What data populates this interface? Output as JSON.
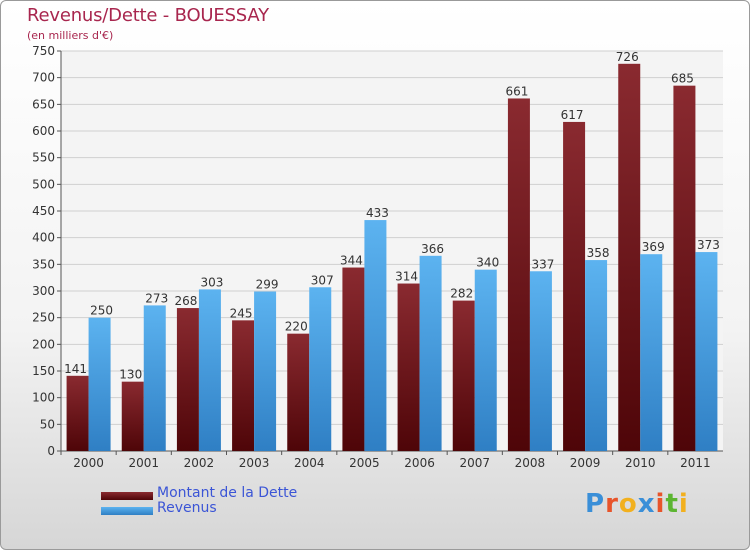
{
  "title": "Revenus/Dette - BOUESSAY",
  "subtitle": "(en milliers d'€)",
  "chart_data": {
    "type": "bar",
    "categories": [
      "2000",
      "2001",
      "2002",
      "2003",
      "2004",
      "2005",
      "2006",
      "2007",
      "2008",
      "2009",
      "2010",
      "2011"
    ],
    "series": [
      {
        "name": "Montant de la Dette",
        "values": [
          141,
          130,
          268,
          245,
          220,
          344,
          314,
          282,
          661,
          617,
          726,
          685
        ],
        "color": "#6b0f14"
      },
      {
        "name": "Revenus",
        "values": [
          250,
          273,
          303,
          299,
          307,
          433,
          366,
          340,
          337,
          358,
          369,
          373
        ],
        "color": "#4aa3e6"
      }
    ],
    "ylim": [
      0,
      750
    ],
    "yticks": [
      0,
      50,
      100,
      150,
      200,
      250,
      300,
      350,
      400,
      450,
      500,
      550,
      600,
      650,
      700,
      750
    ],
    "grid": true,
    "legend": "bottom-left"
  },
  "logo": {
    "letters": [
      "P",
      "r",
      "o",
      "x",
      "i",
      "t",
      "i"
    ],
    "colors": [
      "#3a8fd8",
      "#e8542a",
      "#f2b01e",
      "#3a8fd8",
      "#e8542a",
      "#5cb531",
      "#f2b01e"
    ]
  }
}
